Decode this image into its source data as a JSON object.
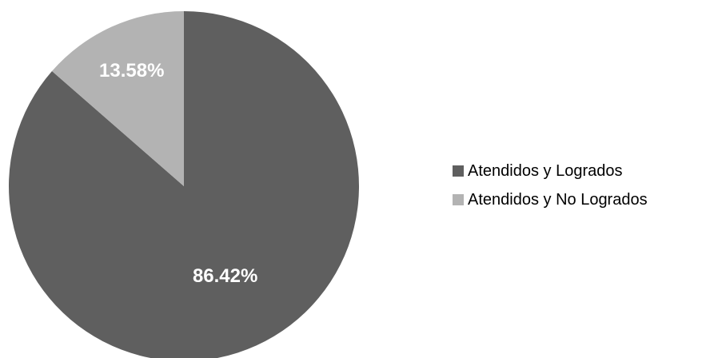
{
  "chart_data": {
    "type": "pie",
    "categories": [
      "Atendidos y Logrados",
      "Atendidos y No Logrados"
    ],
    "values": [
      86.42,
      13.58
    ],
    "labels": [
      "86.42%",
      "13.58%"
    ],
    "colors": [
      "#5f5f5f",
      "#b3b3b3"
    ],
    "legend_position": "right",
    "title": ""
  },
  "legend": {
    "items": [
      {
        "label": "Atendidos y Logrados",
        "color": "#5f5f5f"
      },
      {
        "label": "Atendidos y No Logrados",
        "color": "#b3b3b3"
      }
    ]
  }
}
